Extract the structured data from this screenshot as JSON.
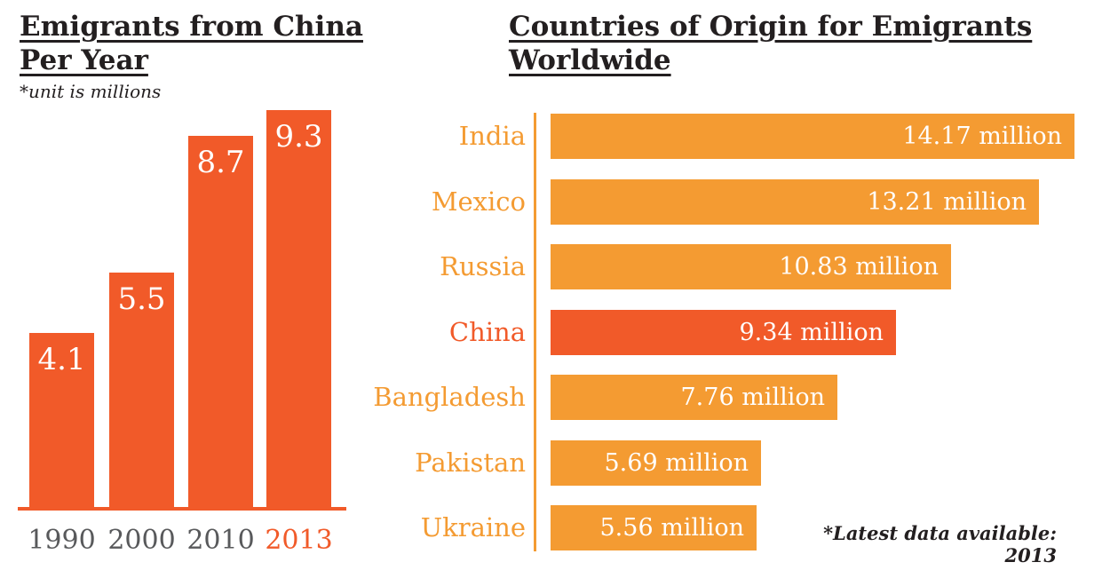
{
  "chart_data": [
    {
      "type": "bar",
      "orientation": "vertical",
      "title": "Emigrants from China Per Year",
      "subtitle": "*unit is millions",
      "unit": "millions",
      "categories": [
        "1990",
        "2000",
        "2010",
        "2013"
      ],
      "values": [
        4.1,
        5.5,
        8.7,
        9.3
      ],
      "value_labels": [
        "4.1",
        "5.5",
        "8.7",
        "9.3"
      ],
      "highlight_index": 3,
      "ylim": [
        0,
        9.5
      ],
      "grid": false,
      "legend": false,
      "colors": {
        "bar": "#f15a29",
        "value_text": "#ffffff",
        "category_label": "#58595b",
        "highlight_label": "#f15a29",
        "axis_line": "#f15a29"
      }
    },
    {
      "type": "bar",
      "orientation": "horizontal",
      "title": "Countries of Origin for Emigrants Worldwide",
      "footnote": "*Latest data available: 2013",
      "categories": [
        "India",
        "Mexico",
        "Russia",
        "China",
        "Bangladesh",
        "Pakistan",
        "Ukraine"
      ],
      "values": [
        14.17,
        13.21,
        10.83,
        9.34,
        7.76,
        5.69,
        5.56
      ],
      "value_labels": [
        "14.17 million",
        "13.21 million",
        "10.83 million",
        "9.34 million",
        "7.76 million",
        "5.69 million",
        "5.56 million"
      ],
      "unit": "millions",
      "highlight_index": 3,
      "xlim": [
        0,
        14.5
      ],
      "grid": false,
      "legend": false,
      "colors": {
        "bar": "#f49b32",
        "highlight_bar": "#f15a29",
        "value_text": "#ffffff",
        "category_label": "#f49b32",
        "highlight_label": "#f15a29",
        "axis_line": "#f49b32"
      }
    }
  ]
}
